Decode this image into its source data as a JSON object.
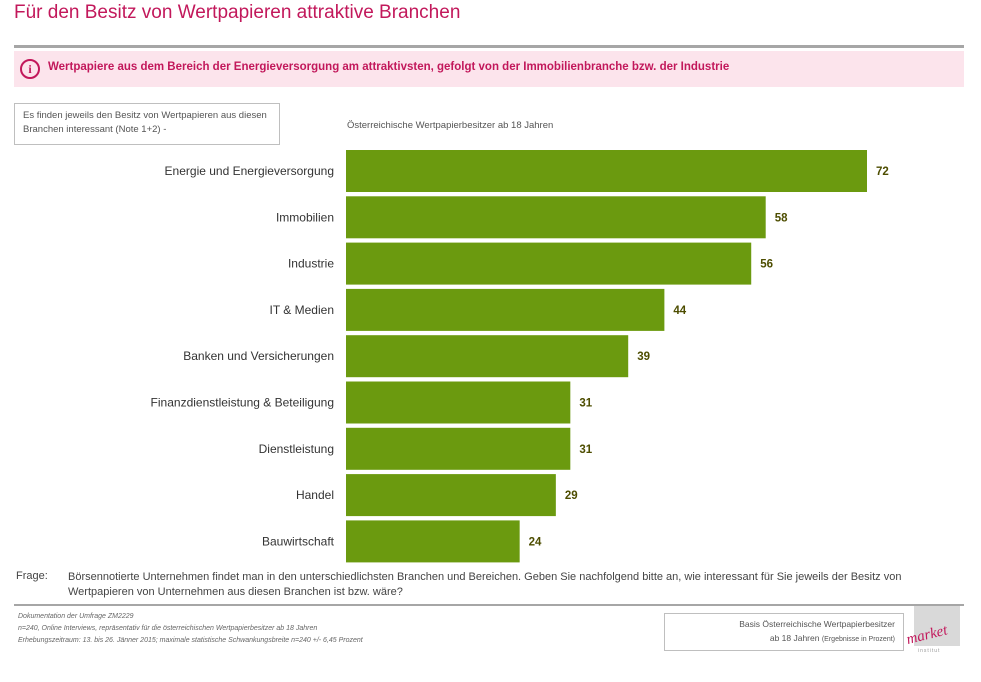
{
  "page": {
    "title": "Für den Besitz von Wertpapieren attraktive Branchen",
    "highlight_icon": "info-icon",
    "highlight_text": "Wertpapiere aus dem Bereich der Energieversorgung am attraktivsten, gefolgt von der Immobilienbranche bzw. der Industrie",
    "note_text": "Es finden jeweils den Besitz von Wertpapieren aus diesen Branchen interessant (Note 1+2) -",
    "frage_label": "Frage:",
    "frage_text": "Börsennotierte Unternehmen findet man in den unterschiedlichsten Branchen und Bereichen. Geben Sie nachfolgend bitte an, wie interessant für Sie jeweils der Besitz von Wertpapieren von Unternehmen aus diesen Branchen ist bzw. wäre?",
    "footer_line1": "Dokumentation der Umfrage ZM2229",
    "footer_line2": "n=240, Online Interviews, repräsentativ für die österreichischen Wertpapierbesitzer ab 18 Jahren",
    "footer_line3": "Erhebungszeitraum: 13. bis 26. Jänner 2015; maximale statistische Schwankungsbreite n=240 +/- 6,45 Prozent",
    "basis_line1": "Basis Österreichische Wertpapierbesitzer",
    "basis_line2_main": "ab 18 Jahren",
    "basis_line2_small": "(Ergebnisse in Prozent)",
    "logo_text": "market",
    "logo_subtext": "institut"
  },
  "colors": {
    "accent": "#c2185b",
    "highlight_bg": "#fce4ec",
    "bar": "#6b9a0f",
    "value_label": "#4d4d00"
  },
  "chart_data": {
    "type": "bar",
    "orientation": "horizontal",
    "categories": [
      "Energie und Energieversorgung",
      "Immobilien",
      "Industrie",
      "IT & Medien",
      "Banken und Versicherungen",
      "Finanzdienstleistung & Beteiligung",
      "Dienstleistung",
      "Handel",
      "Bauwirtschaft"
    ],
    "series": [
      {
        "name": "Österreichische Wertpapierbesitzer ab 18 Jahren",
        "values": [
          72,
          58,
          56,
          44,
          39,
          31,
          31,
          29,
          24
        ]
      }
    ],
    "xlim": [
      0,
      72
    ],
    "grid": false,
    "legend": "top"
  }
}
